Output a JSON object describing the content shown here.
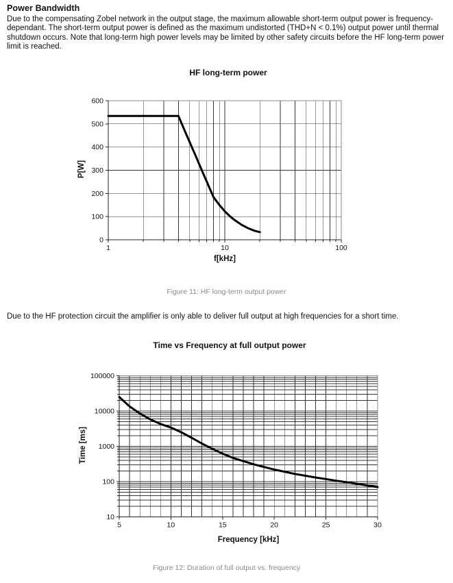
{
  "page": {
    "heading": "Power Bandwidth",
    "paragraph1": "Due to the compensating Zobel network in the output stage, the maximum allowable short-term output power is frequency-dependant. The short-term output power is defined as the maximum undistorted (THD+N < 0.1%) output power until thermal shutdown occurs. Note that long-term high power levels may be limited by other safety circuits before the HF long-term power limit is reached.",
    "paragraph2": "Due to the HF protection circuit the amplifier is only able to deliver full output at high frequencies for a short time.",
    "caption_fig11": "Figure 11: HF long-term output power",
    "caption_fig12": "Figure 12: Duration of full output vs. frequency"
  },
  "colors": {
    "text": "#111111",
    "caption": "#8a8a8a",
    "curve": "#000000",
    "grid": "#333333",
    "border": "#888888",
    "axis": "#222222"
  },
  "chart_data": [
    {
      "type": "line",
      "title": "HF long-term power",
      "xlabel": "f[kHz]",
      "ylabel": "P[W]",
      "xscale": "log",
      "yscale": "linear",
      "xlim": [
        1,
        100
      ],
      "ylim": [
        0,
        600
      ],
      "x_ticks": [
        1,
        10,
        100
      ],
      "y_ticks": [
        0,
        100,
        200,
        300,
        400,
        500,
        600
      ],
      "x_minor": "log",
      "y_minor": null,
      "grid": true,
      "legend": null,
      "x": [
        1,
        2,
        3,
        4,
        4.5,
        5,
        5.5,
        6,
        6.5,
        7,
        7.5,
        8,
        9,
        10,
        11,
        12,
        13,
        14,
        16,
        18,
        20
      ],
      "y": [
        534,
        534,
        534,
        534,
        474,
        421,
        373,
        329,
        288,
        251,
        216,
        184,
        150,
        123,
        103,
        87,
        75,
        64,
        49,
        39,
        33
      ]
    },
    {
      "type": "line",
      "title": "Time vs Frequency at full output power",
      "xlabel": "Frequency [kHz]",
      "ylabel": "Time [ms]",
      "xscale": "linear",
      "yscale": "log",
      "xlim": [
        5,
        30
      ],
      "ylim": [
        10,
        100000
      ],
      "x_ticks": [
        5,
        10,
        15,
        20,
        25,
        30
      ],
      "y_ticks": [
        10,
        100,
        1000,
        10000,
        100000
      ],
      "x_minor": 1,
      "y_minor": "log",
      "grid": true,
      "legend": null,
      "x": [
        5,
        6,
        7,
        8,
        9,
        10,
        11,
        12,
        13,
        14,
        15,
        16,
        17,
        18,
        19,
        20,
        21,
        22,
        23,
        24,
        25,
        26,
        27,
        28,
        29,
        30
      ],
      "y": [
        25000,
        13500,
        8500,
        5800,
        4300,
        3400,
        2500,
        1750,
        1200,
        850,
        620,
        470,
        380,
        310,
        260,
        220,
        190,
        165,
        147,
        131,
        118,
        106,
        96,
        87,
        78,
        70
      ]
    }
  ]
}
